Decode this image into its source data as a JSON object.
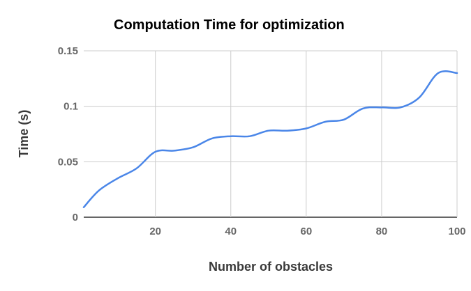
{
  "chart_data": {
    "type": "line",
    "title": "Computation Time for optimization",
    "xlabel": "Number of obstacles",
    "ylabel": "Time (s)",
    "xlim": [
      1,
      100
    ],
    "ylim": [
      0,
      0.15
    ],
    "x_ticks": [
      20,
      40,
      60,
      80,
      100
    ],
    "y_ticks": [
      0,
      0.05,
      0.1,
      0.15
    ],
    "y_tick_labels": [
      "0",
      "0.05",
      "0.1",
      "0.15"
    ],
    "grid": true,
    "legend": "none",
    "colors": {
      "line": "#4a86e8",
      "grid": "#cccccc",
      "zero_axis": "#333333"
    },
    "series": [
      {
        "x": [
          1,
          5,
          10,
          15,
          20,
          25,
          30,
          35,
          40,
          45,
          50,
          55,
          60,
          65,
          70,
          75,
          80,
          85,
          90,
          95,
          100
        ],
        "values": [
          0.009,
          0.024,
          0.035,
          0.044,
          0.059,
          0.06,
          0.063,
          0.071,
          0.073,
          0.073,
          0.078,
          0.078,
          0.08,
          0.086,
          0.088,
          0.098,
          0.099,
          0.099,
          0.108,
          0.13,
          0.13
        ]
      }
    ]
  }
}
